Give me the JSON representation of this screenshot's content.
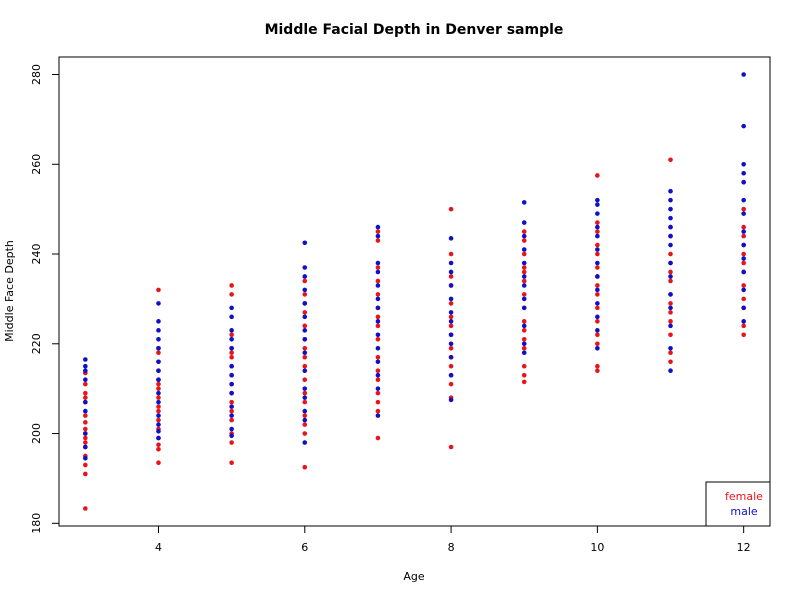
{
  "chart_data": {
    "type": "scatter",
    "title": "Middle Facial Depth in Denver sample",
    "x_label": "Age",
    "y_label": "Middle Face Depth",
    "xlim": [
      2.64,
      12.36
    ],
    "ylim": [
      179.4,
      283.9
    ],
    "xticks": [
      4,
      6,
      8,
      10,
      12
    ],
    "yticks": [
      180,
      200,
      220,
      240,
      260,
      280
    ],
    "legend_position": "bottom-right",
    "series": [
      {
        "name": "female",
        "color": "#e8141b",
        "x": [
          3,
          3,
          3,
          3,
          3,
          3,
          3,
          3,
          3,
          3,
          3,
          3,
          3,
          3,
          3,
          3,
          4,
          4,
          4,
          4,
          4,
          4,
          4,
          4,
          4,
          4,
          4,
          4,
          4,
          4,
          4,
          4,
          4,
          5,
          5,
          5,
          5,
          5,
          5,
          5,
          5,
          5,
          5,
          5,
          5,
          5,
          5,
          5,
          5,
          6,
          6,
          6,
          6,
          6,
          6,
          6,
          6,
          6,
          6,
          6,
          6,
          6,
          6,
          6,
          6,
          7,
          7,
          7,
          7,
          7,
          7,
          7,
          7,
          7,
          7,
          7,
          7,
          7,
          7,
          7,
          7,
          8,
          8,
          8,
          8,
          8,
          8,
          8,
          8,
          8,
          8,
          8,
          8,
          8,
          8,
          8,
          9,
          9,
          9,
          9,
          9,
          9,
          9,
          9,
          9,
          9,
          9,
          9,
          9,
          9,
          9,
          10,
          10,
          10,
          10,
          10,
          10,
          10,
          10,
          10,
          10,
          10,
          10,
          10,
          10,
          10,
          11,
          11,
          11,
          11,
          11,
          11,
          11,
          11,
          11,
          11,
          11,
          11,
          11,
          11,
          12,
          12,
          12,
          12,
          12,
          12,
          12,
          12,
          12,
          12,
          12,
          12,
          12
        ],
        "values": [
          183.3,
          191,
          193,
          195,
          197,
          198,
          199,
          200,
          201,
          202.5,
          204,
          207,
          208,
          209,
          211,
          213.5,
          193.5,
          196.5,
          197.5,
          199,
          201,
          203,
          205,
          206,
          208,
          210,
          211,
          212,
          214,
          216,
          218,
          219,
          232,
          193.5,
          198,
          200,
          203,
          205,
          207,
          209,
          211,
          213,
          215,
          217,
          218,
          219,
          222,
          231,
          233,
          192.5,
          200,
          202,
          204,
          207,
          209,
          212,
          215,
          217,
          219,
          221,
          224,
          227,
          229,
          231,
          234,
          199,
          205,
          207,
          209,
          212,
          214,
          217,
          221,
          224,
          226,
          228,
          231,
          234,
          237,
          243,
          245,
          197,
          208,
          211,
          213,
          215,
          217,
          219,
          222,
          224,
          226,
          229,
          233,
          235,
          240,
          250,
          211.5,
          213,
          215,
          219,
          221,
          223,
          225,
          228,
          231,
          234,
          236,
          237,
          240,
          243,
          245,
          214,
          215,
          220,
          222,
          225,
          228,
          231,
          233,
          235,
          237,
          240,
          242,
          245,
          247,
          257.5,
          216,
          218,
          222,
          225,
          227,
          229,
          231,
          234,
          236,
          238,
          240,
          244,
          246,
          261,
          222,
          224,
          228,
          230,
          233,
          236,
          238,
          240,
          242,
          244,
          246,
          250,
          256
        ]
      },
      {
        "name": "male",
        "color": "#1010c8",
        "x": [
          3,
          3,
          3,
          3,
          3,
          3,
          3,
          3,
          3,
          4,
          4,
          4,
          4,
          4,
          4,
          4,
          4,
          4,
          4,
          4,
          4,
          4,
          4,
          5,
          5,
          5,
          5,
          5,
          5,
          5,
          5,
          5,
          5,
          5,
          5,
          5,
          6,
          6,
          6,
          6,
          6,
          6,
          6,
          6,
          6,
          6,
          6,
          6,
          6,
          6,
          6,
          7,
          7,
          7,
          7,
          7,
          7,
          7,
          7,
          7,
          7,
          7,
          7,
          7,
          7,
          8,
          8,
          8,
          8,
          8,
          8,
          8,
          8,
          8,
          8,
          8,
          8,
          9,
          9,
          9,
          9,
          9,
          9,
          9,
          9,
          9,
          9,
          9,
          9,
          10,
          10,
          10,
          10,
          10,
          10,
          10,
          10,
          10,
          10,
          10,
          10,
          10,
          11,
          11,
          11,
          11,
          11,
          11,
          11,
          11,
          11,
          11,
          11,
          11,
          11,
          11,
          12,
          12,
          12,
          12,
          12,
          12,
          12,
          12,
          12,
          12,
          12,
          12,
          12,
          12
        ],
        "values": [
          194.5,
          197,
          200,
          205,
          207,
          212,
          214,
          215,
          216.5,
          199,
          200.5,
          202,
          204,
          207,
          209,
          212,
          214,
          216,
          219,
          221,
          223,
          225,
          229,
          199.5,
          201,
          204,
          206,
          209,
          211,
          213,
          215,
          219,
          221,
          223,
          226,
          228,
          198,
          203,
          205,
          208,
          210,
          214,
          218,
          221,
          223,
          226,
          229,
          232,
          235,
          237,
          242.5,
          204,
          210,
          213,
          216,
          219,
          222,
          225,
          228,
          230,
          233,
          236,
          238,
          244,
          246,
          207.5,
          213,
          217,
          220,
          222,
          225,
          227,
          230,
          233,
          236,
          238,
          243.5,
          218,
          220,
          224,
          228,
          230,
          233,
          235,
          238,
          241,
          244,
          247,
          251.5,
          219,
          223,
          226,
          229,
          232,
          235,
          238,
          241,
          244,
          246,
          249,
          251,
          252,
          214,
          219,
          224,
          228,
          231,
          235,
          238,
          242,
          244,
          246,
          248,
          250,
          252,
          254,
          225,
          228,
          232,
          236,
          239,
          242,
          245,
          249,
          252,
          256,
          258,
          260,
          268.5,
          280
        ]
      }
    ]
  }
}
